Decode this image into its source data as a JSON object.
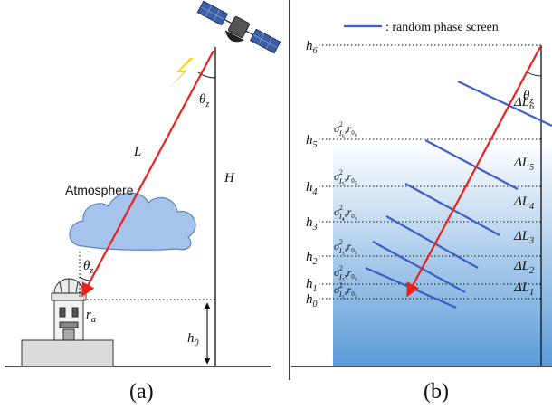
{
  "panel_a": {
    "caption": "(a)",
    "atmosphere_label": "Atmosphere",
    "path_label": "L",
    "height_label": "H",
    "theta": "θ",
    "theta_sub": "z",
    "r": "r",
    "r_sub": "a",
    "h0": "h",
    "h0_sub": "0"
  },
  "panel_b": {
    "caption": "(b)",
    "legend": ": random phase screen",
    "theta": "θ",
    "theta_sub": "z",
    "heights": [
      {
        "sym": "h",
        "sub": "6"
      },
      {
        "sym": "h",
        "sub": "5"
      },
      {
        "sym": "h",
        "sub": "4"
      },
      {
        "sym": "h",
        "sub": "3"
      },
      {
        "sym": "h",
        "sub": "2"
      },
      {
        "sym": "h",
        "sub": "1"
      },
      {
        "sym": "h",
        "sub": "0"
      }
    ],
    "layers": [
      {
        "i": "6",
        "dL": "ΔL",
        "dL_sub": "6"
      },
      {
        "i": "5",
        "dL": "ΔL",
        "dL_sub": "5"
      },
      {
        "i": "4",
        "dL": "ΔL",
        "dL_sub": "4"
      },
      {
        "i": "3",
        "dL": "ΔL",
        "dL_sub": "3"
      },
      {
        "i": "2",
        "dL": "ΔL",
        "dL_sub": "2"
      },
      {
        "i": "1",
        "dL": "ΔL",
        "dL_sub": "1"
      }
    ],
    "sigma": "σ",
    "sigma_sup": "2",
    "I": "I",
    "r0": "r",
    "r0_sub": "0"
  },
  "colors": {
    "ray": "#e8231f",
    "screen": "#3a5fc8",
    "cloud_fill": "#a6c3ec",
    "cloud_stroke": "#5f84c4",
    "sky_top": "#ffffff",
    "sky_bottom": "#5b9bd8",
    "bolt": "#f6d31c"
  }
}
